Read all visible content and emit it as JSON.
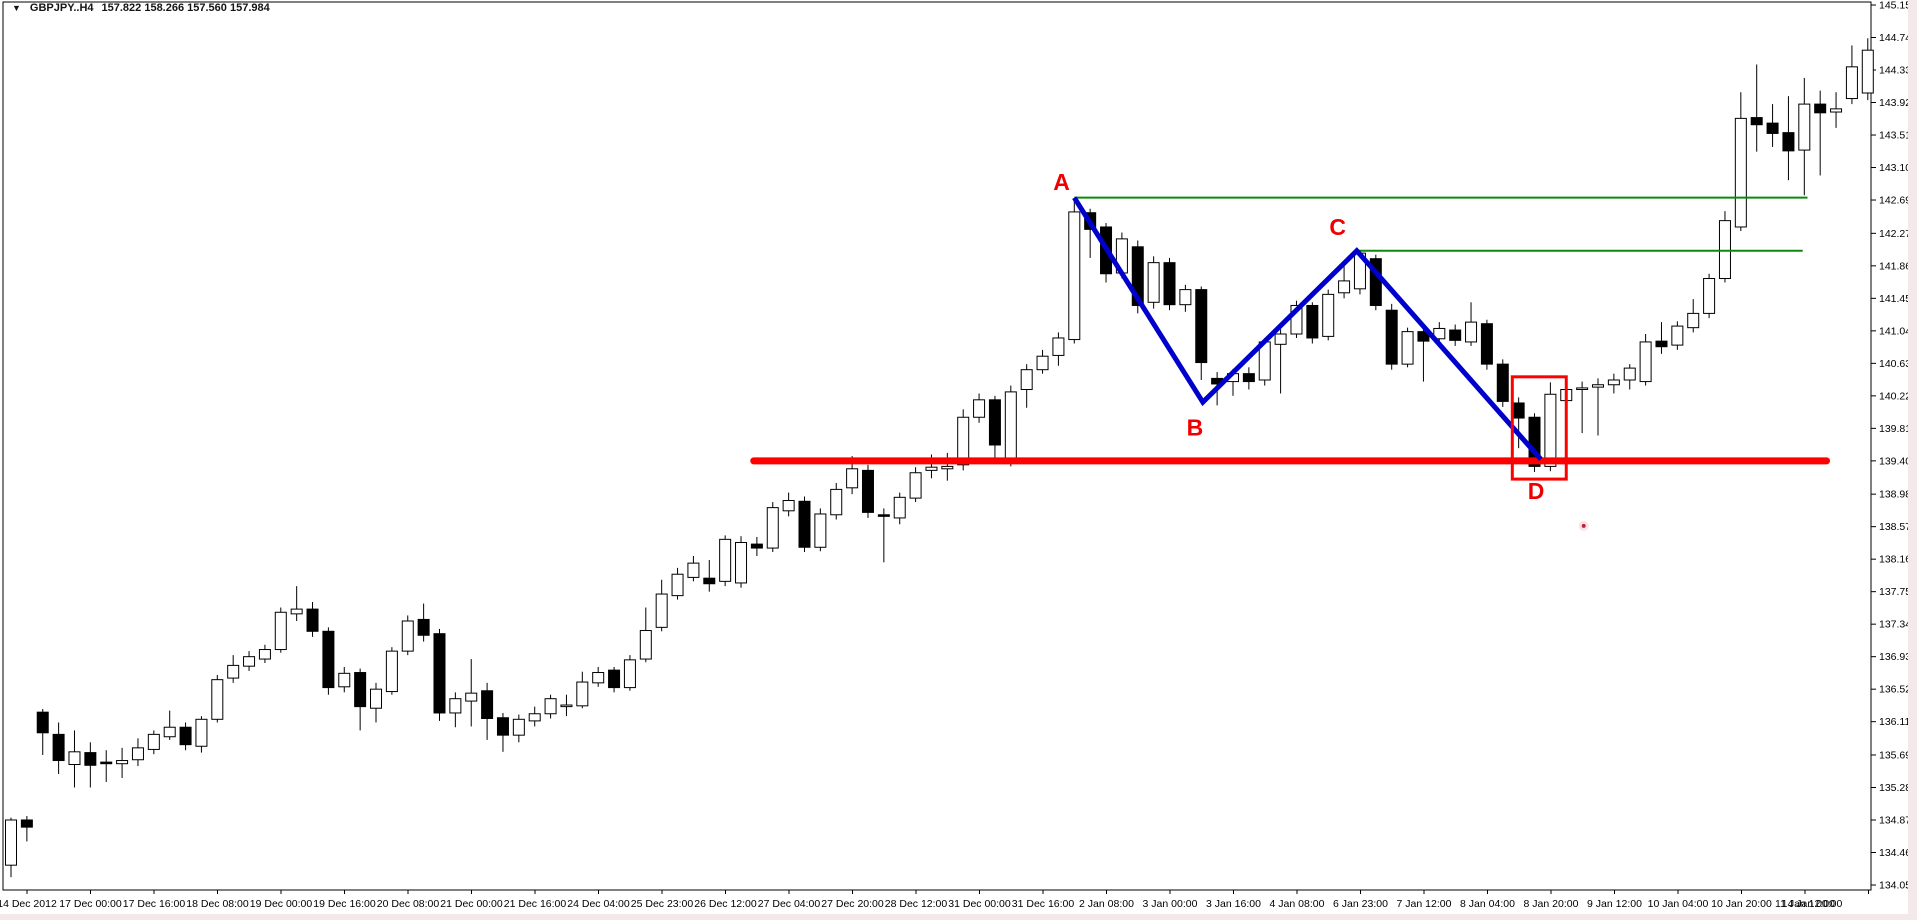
{
  "header": {
    "dropdown_icon": "▼",
    "symbol": "GBPJPY..H4",
    "quotes": "157.822 158.266 157.560 157.984"
  },
  "chart_data": {
    "type": "candlestick",
    "title": "GBPJPY..H4",
    "symbol": "GBPJPY",
    "timeframe": "H4",
    "header_quote_values": [
      157.822,
      158.266,
      157.56,
      157.984
    ],
    "colors": {
      "background": "#ffffff",
      "border": "#000000",
      "bull_fill": "#ffffff",
      "bear_fill": "#000000",
      "candle_outline": "#000000",
      "support_line": "#fe0000",
      "resistance_line": "#0b8a0b",
      "zigzag": "#0000cd",
      "pattern_rect": "#fe0000",
      "pattern_label": "#ee0000",
      "axis_text": "#000000"
    },
    "y_axis": {
      "min": 134.05,
      "max": 145.15,
      "labels": [
        "145.150",
        "144.740",
        "144.330",
        "143.920",
        "143.510",
        "143.100",
        "142.690",
        "142.270",
        "141.860",
        "141.450",
        "141.040",
        "140.630",
        "140.220",
        "139.810",
        "139.400",
        "138.980",
        "138.570",
        "138.160",
        "137.750",
        "137.340",
        "136.930",
        "136.520",
        "136.110",
        "135.690",
        "135.280",
        "134.870",
        "134.460",
        "134.050"
      ]
    },
    "x_axis": {
      "candles_per_label": 4,
      "labels": [
        "14 Dec 2012",
        "17 Dec 00:00",
        "17 Dec 16:00",
        "18 Dec 08:00",
        "19 Dec 00:00",
        "19 Dec 16:00",
        "20 Dec 08:00",
        "21 Dec 00:00",
        "21 Dec 16:00",
        "24 Dec 04:00",
        "25 Dec 23:00",
        "26 Dec 12:00",
        "27 Dec 04:00",
        "27 Dec 20:00",
        "28 Dec 12:00",
        "31 Dec 00:00",
        "31 Dec 16:00",
        "2 Jan 08:00",
        "3 Jan 00:00",
        "3 Jan 16:00",
        "4 Jan 08:00",
        "6 Jan 23:00",
        "7 Jan 12:00",
        "8 Jan 04:00",
        "8 Jan 20:00",
        "9 Jan 12:00",
        "10 Jan 04:00",
        "10 Jan 20:00",
        "11 Jan 12:00",
        "14 Jan 00:00"
      ]
    },
    "candles_ohlc": [
      [
        134.3,
        134.9,
        134.15,
        134.87
      ],
      [
        134.87,
        134.92,
        134.6,
        134.78
      ],
      [
        136.23,
        136.27,
        135.69,
        135.97
      ],
      [
        135.95,
        136.1,
        135.45,
        135.62
      ],
      [
        135.57,
        136.0,
        135.28,
        135.73
      ],
      [
        135.72,
        135.85,
        135.28,
        135.56
      ],
      [
        135.6,
        135.75,
        135.35,
        135.58
      ],
      [
        135.58,
        135.78,
        135.4,
        135.62
      ],
      [
        135.63,
        135.9,
        135.55,
        135.78
      ],
      [
        135.76,
        136.0,
        135.7,
        135.95
      ],
      [
        135.92,
        136.25,
        135.88,
        136.04
      ],
      [
        136.04,
        136.1,
        135.75,
        135.82
      ],
      [
        135.8,
        136.18,
        135.72,
        136.14
      ],
      [
        136.14,
        136.7,
        136.1,
        136.64
      ],
      [
        136.66,
        136.95,
        136.6,
        136.82
      ],
      [
        136.81,
        137.0,
        136.75,
        136.93
      ],
      [
        136.9,
        137.08,
        136.85,
        137.02
      ],
      [
        137.02,
        137.55,
        136.98,
        137.49
      ],
      [
        137.47,
        137.82,
        137.38,
        137.53
      ],
      [
        137.53,
        137.62,
        137.18,
        137.25
      ],
      [
        137.25,
        137.3,
        136.45,
        136.54
      ],
      [
        136.55,
        136.8,
        136.48,
        136.72
      ],
      [
        136.73,
        136.78,
        136.0,
        136.3
      ],
      [
        136.28,
        136.6,
        136.1,
        136.52
      ],
      [
        136.49,
        137.05,
        136.45,
        137.0
      ],
      [
        137.0,
        137.45,
        136.95,
        137.38
      ],
      [
        137.4,
        137.6,
        137.12,
        137.2
      ],
      [
        137.22,
        137.28,
        136.12,
        136.22
      ],
      [
        136.22,
        136.48,
        136.04,
        136.4
      ],
      [
        136.37,
        136.9,
        136.05,
        136.47
      ],
      [
        136.5,
        136.6,
        135.88,
        136.15
      ],
      [
        136.16,
        136.22,
        135.73,
        135.94
      ],
      [
        135.94,
        136.2,
        135.85,
        136.14
      ],
      [
        136.12,
        136.3,
        136.05,
        136.21
      ],
      [
        136.21,
        136.45,
        136.15,
        136.4
      ],
      [
        136.3,
        136.45,
        136.18,
        136.32
      ],
      [
        136.31,
        136.74,
        136.28,
        136.61
      ],
      [
        136.6,
        136.8,
        136.55,
        136.73
      ],
      [
        136.76,
        136.8,
        136.48,
        136.54
      ],
      [
        136.54,
        136.95,
        136.5,
        136.89
      ],
      [
        136.9,
        137.55,
        136.86,
        137.26
      ],
      [
        137.3,
        137.9,
        137.25,
        137.72
      ],
      [
        137.7,
        138.05,
        137.65,
        137.97
      ],
      [
        137.93,
        138.2,
        137.88,
        138.11
      ],
      [
        137.92,
        138.15,
        137.75,
        137.85
      ],
      [
        137.88,
        138.46,
        137.82,
        138.41
      ],
      [
        137.86,
        138.45,
        137.8,
        138.37
      ],
      [
        138.35,
        138.44,
        138.2,
        138.3
      ],
      [
        138.3,
        138.88,
        138.25,
        138.81
      ],
      [
        138.77,
        139.0,
        138.7,
        138.9
      ],
      [
        138.89,
        138.95,
        138.25,
        138.31
      ],
      [
        138.31,
        138.8,
        138.26,
        138.73
      ],
      [
        138.72,
        139.12,
        138.66,
        139.04
      ],
      [
        139.06,
        139.46,
        138.98,
        139.3
      ],
      [
        139.28,
        139.35,
        138.68,
        138.75
      ],
      [
        138.72,
        138.8,
        138.12,
        138.7
      ],
      [
        138.68,
        139.0,
        138.6,
        138.94
      ],
      [
        138.93,
        139.32,
        138.88,
        139.25
      ],
      [
        139.28,
        139.48,
        139.18,
        139.32
      ],
      [
        139.3,
        139.5,
        139.15,
        139.33
      ],
      [
        139.35,
        140.05,
        139.28,
        139.95
      ],
      [
        139.95,
        140.25,
        139.88,
        140.17
      ],
      [
        140.17,
        140.22,
        139.4,
        139.6
      ],
      [
        139.4,
        140.35,
        139.33,
        140.27
      ],
      [
        140.3,
        140.62,
        140.07,
        140.55
      ],
      [
        140.55,
        140.8,
        140.5,
        140.72
      ],
      [
        140.73,
        141.02,
        140.6,
        140.95
      ],
      [
        140.93,
        142.7,
        140.88,
        142.54
      ],
      [
        142.53,
        142.58,
        141.96,
        142.32
      ],
      [
        142.35,
        142.4,
        141.65,
        141.76
      ],
      [
        141.77,
        142.28,
        141.7,
        142.2
      ],
      [
        142.1,
        142.18,
        141.26,
        141.36
      ],
      [
        141.4,
        141.98,
        141.32,
        141.9
      ],
      [
        141.9,
        141.96,
        141.3,
        141.37
      ],
      [
        141.37,
        141.62,
        141.28,
        141.56
      ],
      [
        141.56,
        141.6,
        140.42,
        140.64
      ],
      [
        140.44,
        140.52,
        140.1,
        140.37
      ],
      [
        140.4,
        140.56,
        140.22,
        140.5
      ],
      [
        140.5,
        140.58,
        140.3,
        140.4
      ],
      [
        140.42,
        140.95,
        140.35,
        140.9
      ],
      [
        140.87,
        141.06,
        140.25,
        141.0
      ],
      [
        141.0,
        141.42,
        140.95,
        141.36
      ],
      [
        141.36,
        141.4,
        140.88,
        140.95
      ],
      [
        140.97,
        141.56,
        140.92,
        141.5
      ],
      [
        141.52,
        141.86,
        141.45,
        141.67
      ],
      [
        141.57,
        142.05,
        141.5,
        142.02
      ],
      [
        141.95,
        142.0,
        141.3,
        141.36
      ],
      [
        141.3,
        141.38,
        140.55,
        140.62
      ],
      [
        140.62,
        141.08,
        140.58,
        141.03
      ],
      [
        141.03,
        141.08,
        140.4,
        140.91
      ],
      [
        140.94,
        141.15,
        140.85,
        141.07
      ],
      [
        141.05,
        141.12,
        140.85,
        140.92
      ],
      [
        140.9,
        141.4,
        140.85,
        141.15
      ],
      [
        141.13,
        141.18,
        140.55,
        140.62
      ],
      [
        140.62,
        140.68,
        140.08,
        140.15
      ],
      [
        140.13,
        140.2,
        139.56,
        139.94
      ],
      [
        139.95,
        140.0,
        139.26,
        139.33
      ],
      [
        139.33,
        140.39,
        139.27,
        140.24
      ],
      [
        140.16,
        140.37,
        139.85,
        140.3
      ],
      [
        140.3,
        140.4,
        139.75,
        140.32
      ],
      [
        140.33,
        140.44,
        139.72,
        140.36
      ],
      [
        140.36,
        140.5,
        140.25,
        140.42
      ],
      [
        140.42,
        140.62,
        140.3,
        140.57
      ],
      [
        140.4,
        141.0,
        140.35,
        140.9
      ],
      [
        140.91,
        141.15,
        140.75,
        140.84
      ],
      [
        140.86,
        141.16,
        140.8,
        141.1
      ],
      [
        141.08,
        141.44,
        141.02,
        141.26
      ],
      [
        141.26,
        141.76,
        141.2,
        141.7
      ],
      [
        141.7,
        142.55,
        141.65,
        142.43
      ],
      [
        142.35,
        144.05,
        142.3,
        143.72
      ],
      [
        143.73,
        144.4,
        143.3,
        143.64
      ],
      [
        143.66,
        143.9,
        143.36,
        143.53
      ],
      [
        143.54,
        144.0,
        142.94,
        143.31
      ],
      [
        143.32,
        144.23,
        142.75,
        143.9
      ],
      [
        143.9,
        144.07,
        143.0,
        143.79
      ],
      [
        143.8,
        144.05,
        143.6,
        143.84
      ],
      [
        143.97,
        144.64,
        143.9,
        144.37
      ],
      [
        144.04,
        144.73,
        143.95,
        144.58
      ]
    ],
    "overlays": {
      "support_line": {
        "price": 139.4,
        "from_candle": 46.8,
        "to_candle": 114.4,
        "color": "#fe0000",
        "width": 7
      },
      "resistance_lines": [
        {
          "name": "level-A",
          "price": 142.72,
          "from_candle": 67.0,
          "to_candle": 113.2,
          "color": "#0b8a0b",
          "width": 2
        },
        {
          "name": "level-C",
          "price": 142.05,
          "from_candle": 84.8,
          "to_candle": 112.9,
          "color": "#0b8a0b",
          "width": 2
        }
      ],
      "zigzag": {
        "color": "#0000cd",
        "width": 5,
        "points": [
          [
            67.0,
            142.72
          ],
          [
            75.1,
            140.14
          ],
          [
            84.8,
            142.05
          ],
          [
            96.4,
            139.42
          ]
        ]
      },
      "pattern_rectangle": {
        "from_candle": 94.6,
        "to_candle": 98.0,
        "top_price": 140.46,
        "bottom_price": 139.17,
        "color": "#fe0000",
        "width": 3
      },
      "red_dot": {
        "candle": 99.1,
        "price": 138.58,
        "color": "#c2223f"
      },
      "labels": [
        {
          "text": "A",
          "candle": 66.2,
          "price": 142.92
        },
        {
          "text": "B",
          "candle": 74.6,
          "price": 139.82
        },
        {
          "text": "C",
          "candle": 83.6,
          "price": 142.35
        },
        {
          "text": "D",
          "candle": 96.1,
          "price": 139.02
        }
      ]
    }
  }
}
